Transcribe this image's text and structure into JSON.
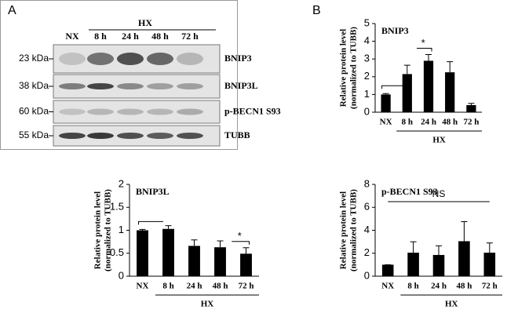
{
  "panels": {
    "a_label": "A",
    "b_label": "B"
  },
  "blot": {
    "group": "HX",
    "lanes": [
      "NX",
      "8 h",
      "24 h",
      "48 h",
      "72 h"
    ],
    "rows": [
      {
        "size": "23 kDa",
        "protein": "BNIP3"
      },
      {
        "size": "38 kDa",
        "protein": "BNIP3L"
      },
      {
        "size": "60 kDa",
        "protein": "p-BECN1 S93"
      },
      {
        "size": "55 kDa",
        "protein": "TUBB"
      }
    ]
  },
  "chart_data": [
    {
      "type": "bar",
      "title": "BNIP3",
      "ylabel": [
        "Relative protein level",
        "(normalized to TUBB)"
      ],
      "group": "HX",
      "annotation": "*",
      "categories": [
        "NX",
        "8 h",
        "24 h",
        "48 h",
        "72 h"
      ],
      "values": [
        1.0,
        2.15,
        2.9,
        2.25,
        0.4
      ],
      "errors": [
        0.05,
        0.5,
        0.35,
        0.6,
        0.1
      ],
      "color": "#000000",
      "ylim": [
        0,
        5
      ],
      "yticks": [
        0,
        1,
        2,
        3,
        4,
        5
      ]
    },
    {
      "type": "bar",
      "title": "BNIP3L",
      "ylabel": [
        "Relative protein level",
        "(normalized to TUBB)"
      ],
      "group": "HX",
      "annotation": "*",
      "categories": [
        "NX",
        "8 h",
        "24 h",
        "48 h",
        "72 h"
      ],
      "values": [
        1.0,
        1.03,
        0.66,
        0.63,
        0.49
      ],
      "errors": [
        0.02,
        0.07,
        0.13,
        0.14,
        0.13
      ],
      "color": "#000000",
      "ylim": [
        0,
        2
      ],
      "yticks": [
        0,
        0.5,
        1,
        1.5,
        2
      ]
    },
    {
      "type": "bar",
      "title": "p-BECN1 S93",
      "ylabel": [
        "Relative protein level",
        "(normalized to TUBB)"
      ],
      "group": "HX",
      "annotation": "NS",
      "categories": [
        "NX",
        "8 h",
        "24 h",
        "48 h",
        "72 h"
      ],
      "values": [
        1.0,
        2.05,
        1.85,
        3.05,
        2.05
      ],
      "errors": [
        0,
        0.95,
        0.8,
        1.7,
        0.85
      ],
      "color": "#000000",
      "ylim": [
        0,
        8
      ],
      "yticks": [
        0,
        2,
        4,
        6,
        8
      ]
    }
  ]
}
